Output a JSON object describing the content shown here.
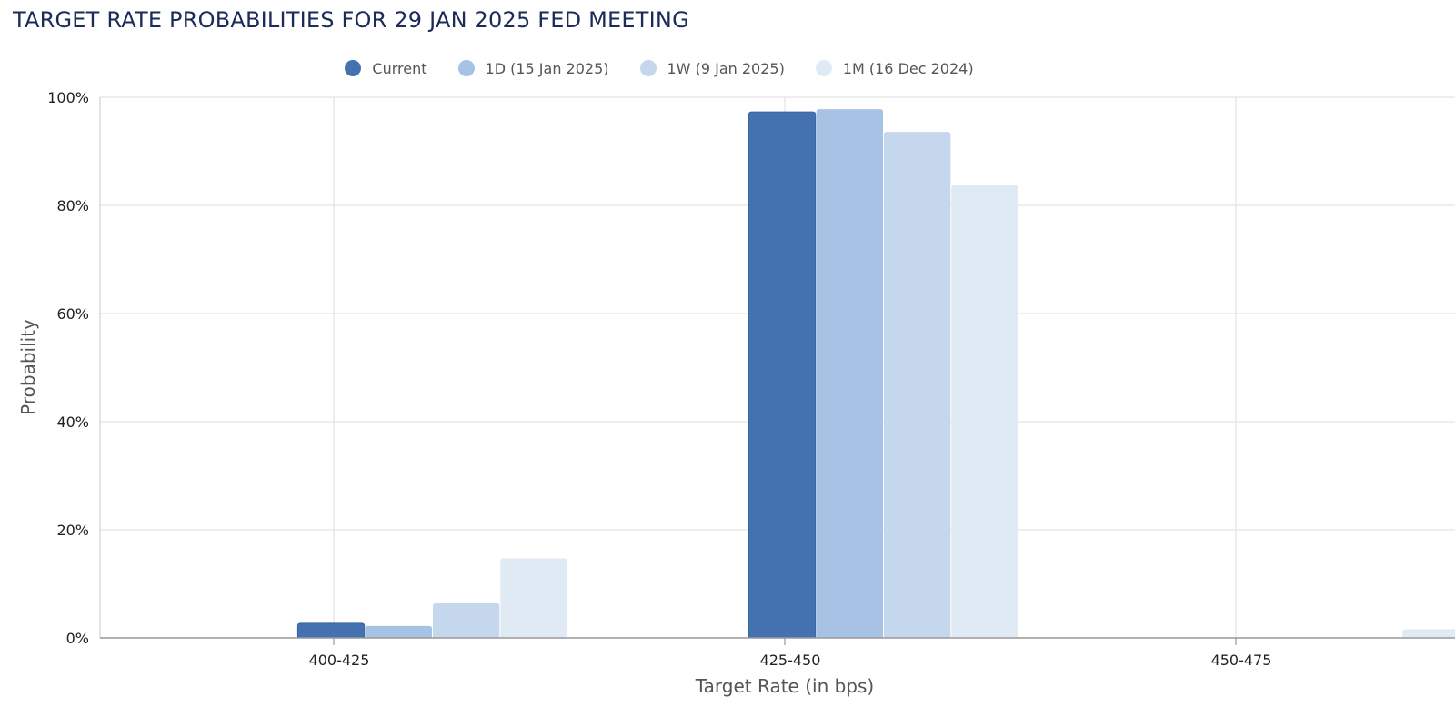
{
  "title": "TARGET RATE PROBABILITIES FOR 29 JAN 2025 FED MEETING",
  "legend_icon": "circle",
  "chart_data": {
    "type": "bar",
    "title": "TARGET RATE PROBABILITIES FOR 29 JAN 2025 FED MEETING",
    "xlabel": "Target Rate (in bps)",
    "ylabel": "Probability",
    "categories": [
      "400-425",
      "425-450",
      "450-475"
    ],
    "ylim": [
      0,
      100
    ],
    "yticks": [
      "0%",
      "20%",
      "40%",
      "60%",
      "80%",
      "100%"
    ],
    "grid": true,
    "legend_position": "top-center",
    "series": [
      {
        "name": "Current",
        "color": "#4472b0",
        "values": [
          2.7,
          97.3,
          0
        ]
      },
      {
        "name": "1D (15 Jan 2025)",
        "color": "#a6c2e4",
        "values": [
          2.2,
          97.8,
          0
        ]
      },
      {
        "name": "1W (9 Jan 2025)",
        "color": "#c4d7ed",
        "values": [
          6.4,
          93.6,
          0
        ]
      },
      {
        "name": "1M (16 Dec 2024)",
        "color": "#e0eaf5",
        "values": [
          14.7,
          83.7,
          1.6
        ]
      }
    ]
  }
}
